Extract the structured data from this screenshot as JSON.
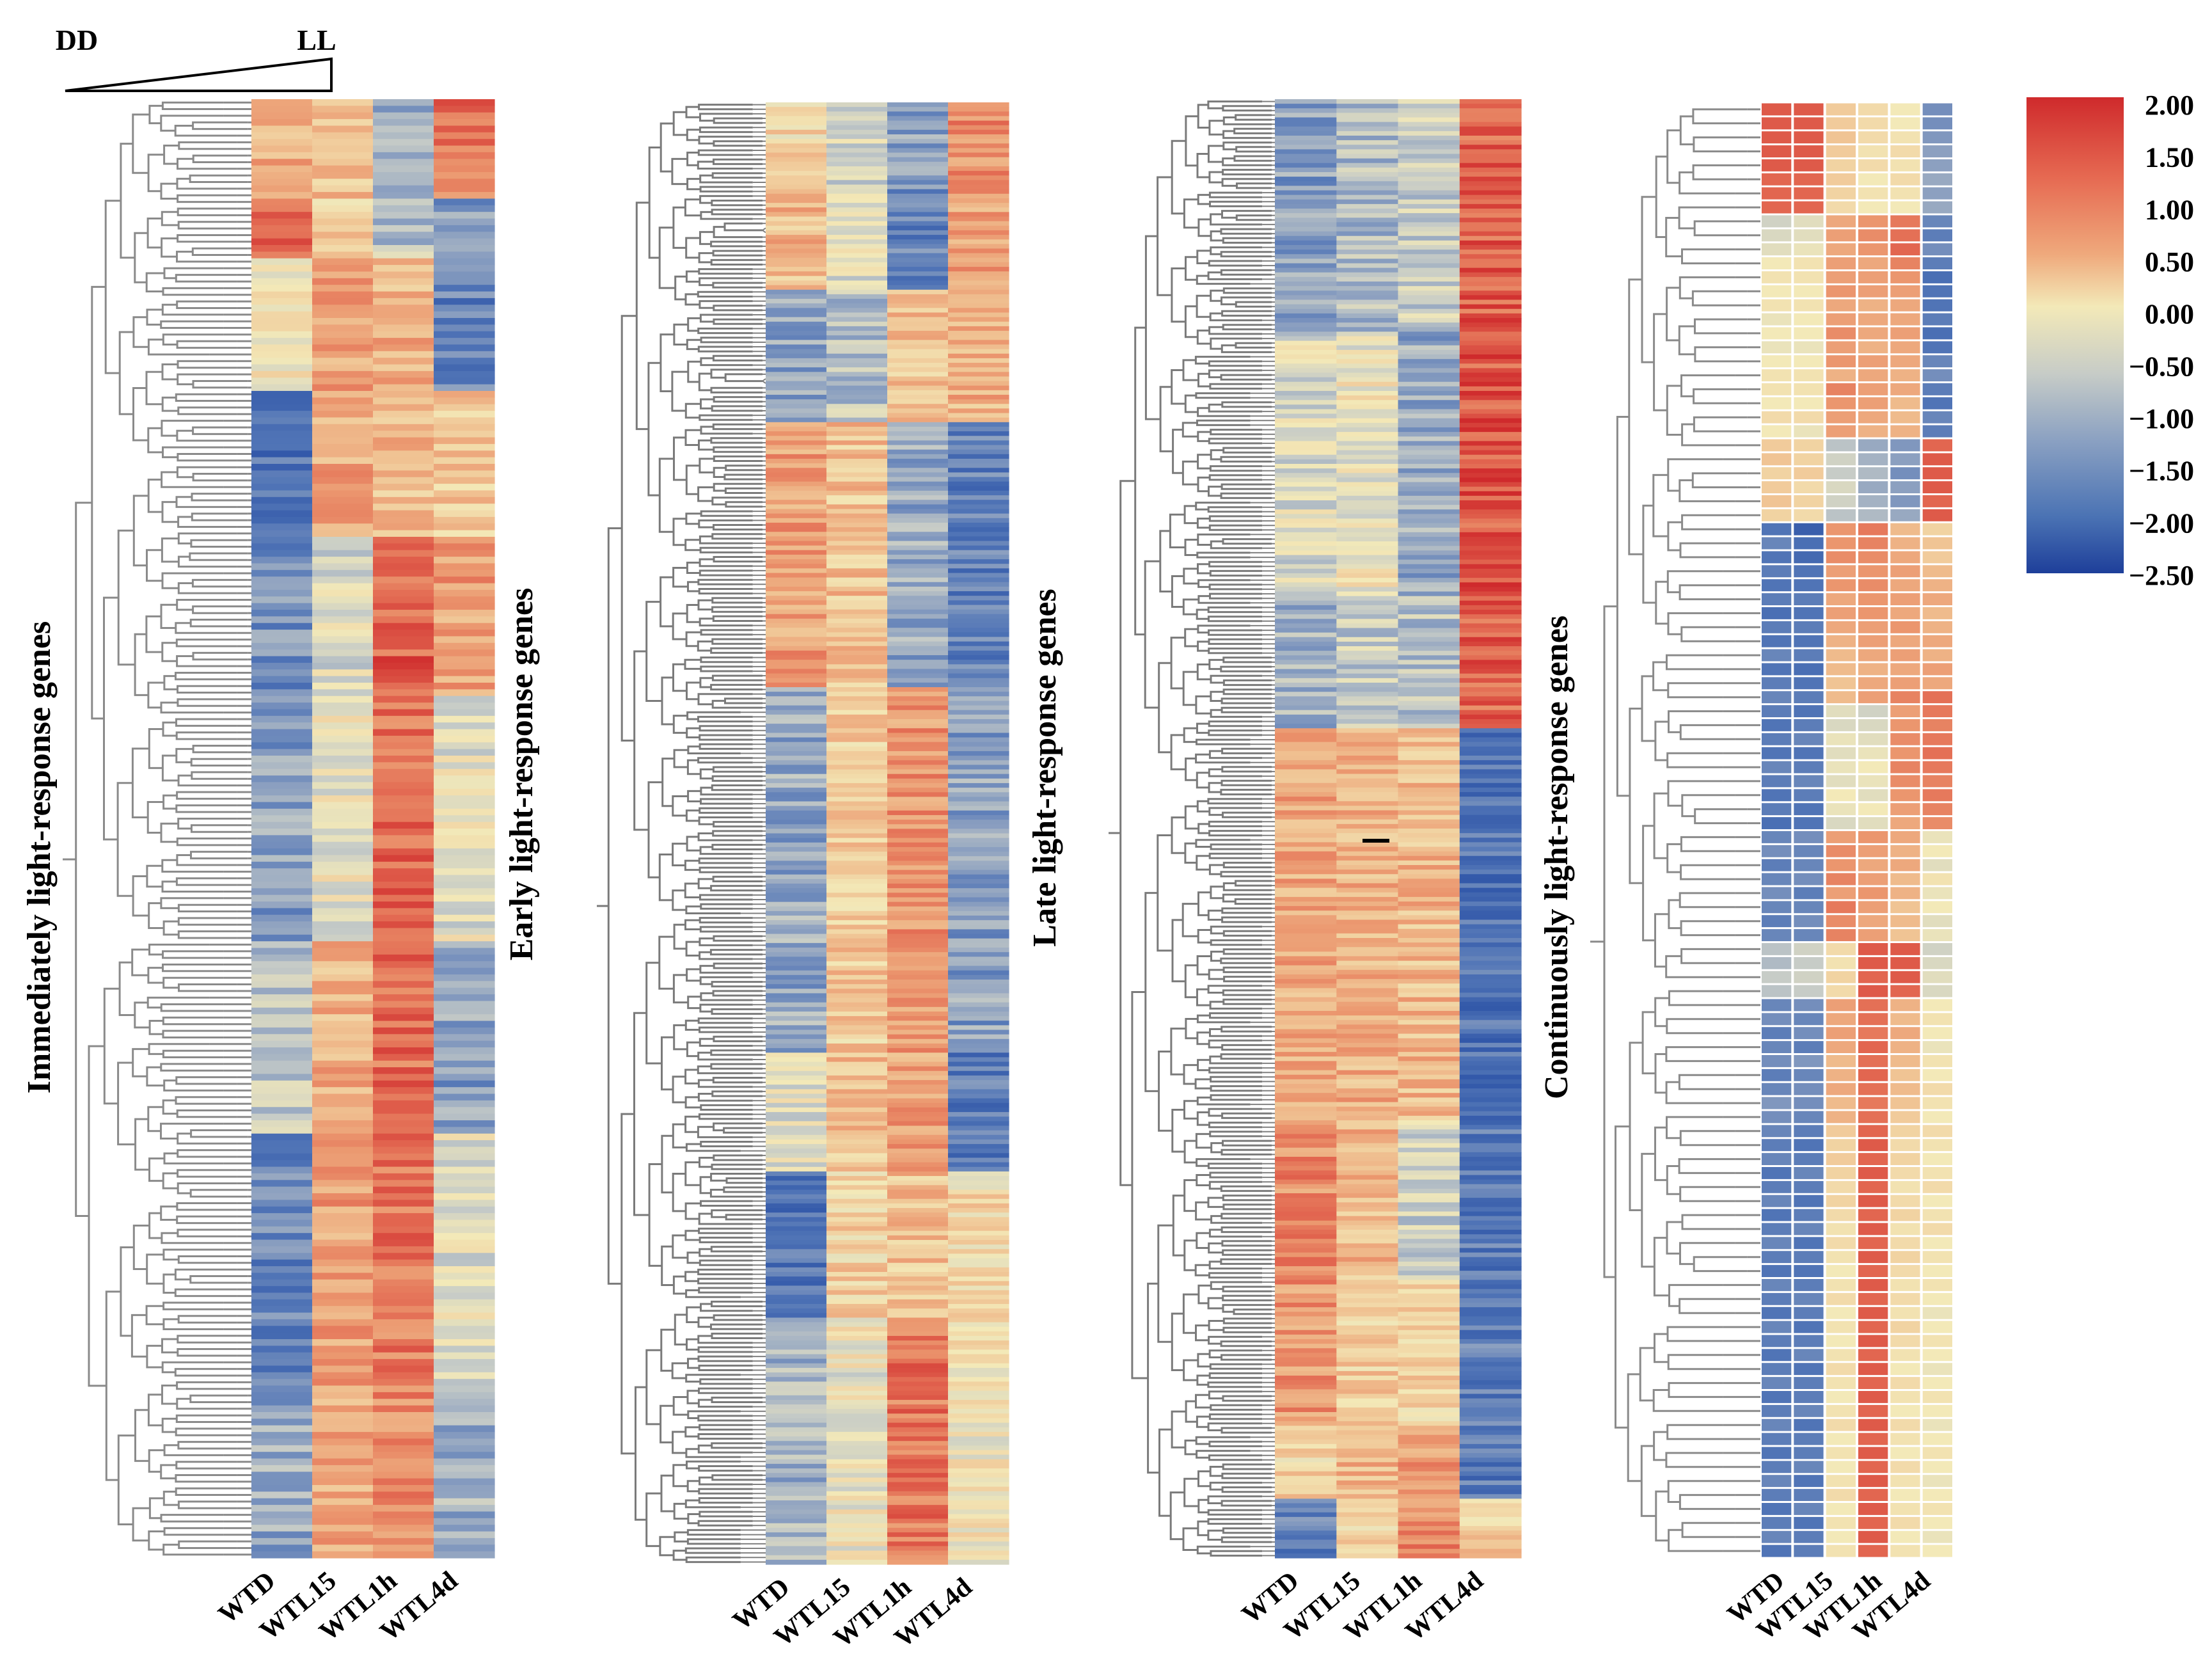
{
  "chart_data": {
    "type": "heatmap",
    "title": "",
    "xlabel": "",
    "ylabel": "",
    "samples": [
      "WTD",
      "WTL15",
      "WTL1h",
      "WTL4d"
    ],
    "gradient": {
      "left_label": "DD",
      "right_label": "LL"
    },
    "color_scale": {
      "ticks": [
        "2.00",
        "1.50",
        "1.00",
        "0.50",
        "0.00",
        "−0.50",
        "−1.00",
        "−1.50",
        "−2.00",
        "−2.50"
      ],
      "range": [
        -2.5,
        2.0
      ],
      "colors": {
        "high": "#cf2a2c",
        "mid_high": "#ef9c6e",
        "mid": "#f3e9b8",
        "mid_low": "#9fb0c6",
        "low": "#3d6aae",
        "lowest": "#1e3f9a"
      }
    },
    "panels": [
      {
        "label": "Immediately light-response genes",
        "clusters": [
          {
            "share": 0.07,
            "values": [
              0.7,
              0.5,
              -0.9,
              1.3
            ]
          },
          {
            "share": 0.04,
            "values": [
              1.4,
              0.3,
              -0.6,
              -1.0
            ]
          },
          {
            "share": 0.09,
            "values": [
              0.1,
              0.9,
              0.7,
              -1.4
            ]
          },
          {
            "share": 0.1,
            "values": [
              -1.6,
              0.8,
              0.6,
              0.4
            ]
          },
          {
            "share": 0.11,
            "values": [
              -1.2,
              -0.3,
              1.5,
              0.9
            ]
          },
          {
            "share": 0.17,
            "values": [
              -1.0,
              -0.1,
              1.4,
              -0.2
            ]
          },
          {
            "share": 0.13,
            "values": [
              -0.6,
              0.7,
              1.4,
              -1.0
            ]
          },
          {
            "share": 0.18,
            "values": [
              -1.3,
              0.9,
              1.3,
              -0.2
            ]
          },
          {
            "share": 0.11,
            "values": [
              -0.9,
              0.8,
              1.1,
              -0.8
            ]
          }
        ]
      },
      {
        "label": "Early light-response genes",
        "clusters": [
          {
            "share": 0.06,
            "values": [
              0.2,
              -0.3,
              -1.0,
              1.1
            ]
          },
          {
            "share": 0.07,
            "values": [
              0.6,
              -0.2,
              -1.4,
              0.9
            ]
          },
          {
            "share": 0.09,
            "values": [
              -1.0,
              -0.6,
              0.5,
              0.7
            ]
          },
          {
            "share": 0.18,
            "values": [
              0.9,
              0.5,
              -0.9,
              -1.4
            ]
          },
          {
            "share": 0.25,
            "values": [
              -0.9,
              0.4,
              1.0,
              -1.0
            ]
          },
          {
            "share": 0.08,
            "values": [
              -0.2,
              0.5,
              0.9,
              -1.5
            ]
          },
          {
            "share": 0.1,
            "values": [
              -1.6,
              0.3,
              0.5,
              0.2
            ]
          },
          {
            "share": 0.17,
            "values": [
              -0.8,
              -0.1,
              1.3,
              0.0
            ]
          }
        ]
      },
      {
        "label": "Late light-response genes",
        "clusters": [
          {
            "share": 0.16,
            "values": [
              -1.0,
              -0.7,
              -0.5,
              1.5
            ]
          },
          {
            "share": 0.18,
            "values": [
              -0.3,
              -0.1,
              -0.9,
              1.6
            ]
          },
          {
            "share": 0.09,
            "values": [
              -0.8,
              -0.5,
              -0.6,
              1.5
            ]
          },
          {
            "share": 0.27,
            "values": [
              0.8,
              0.7,
              0.6,
              -1.6
            ]
          },
          {
            "share": 0.11,
            "values": [
              1.1,
              0.6,
              -0.4,
              -1.5
            ]
          },
          {
            "share": 0.1,
            "values": [
              1.0,
              0.4,
              0.3,
              -1.4
            ]
          },
          {
            "share": 0.05,
            "values": [
              0.3,
              0.6,
              1.0,
              -1.5
            ]
          },
          {
            "share": 0.04,
            "values": [
              -1.4,
              0.2,
              1.1,
              0.4
            ]
          }
        ]
      },
      {
        "label": "Continuously light-response genes",
        "rows": [
          [
            1.6,
            1.6,
            0.4,
            0.2,
            0.0,
            -1.2
          ],
          [
            1.6,
            1.6,
            0.4,
            0.2,
            0.0,
            -1.2
          ],
          [
            1.6,
            1.6,
            0.5,
            0.2,
            0.1,
            -1.1
          ],
          [
            1.6,
            1.6,
            0.4,
            0.1,
            0.2,
            -1.0
          ],
          [
            1.6,
            1.6,
            0.3,
            0.2,
            0.1,
            -1.0
          ],
          [
            1.5,
            1.5,
            0.4,
            0.0,
            0.2,
            -0.9
          ],
          [
            1.5,
            1.5,
            0.3,
            0.1,
            0.1,
            -1.0
          ],
          [
            1.5,
            1.5,
            0.2,
            0.0,
            0.0,
            -0.9
          ],
          [
            -0.4,
            -0.2,
            0.8,
            1.0,
            1.3,
            -1.3
          ],
          [
            -0.3,
            -0.2,
            0.9,
            1.1,
            1.4,
            -1.4
          ],
          [
            -0.2,
            -0.1,
            0.8,
            1.0,
            1.5,
            -1.2
          ],
          [
            0.0,
            0.1,
            0.9,
            0.8,
            1.2,
            -1.4
          ],
          [
            0.1,
            0.1,
            0.9,
            0.9,
            1.0,
            -1.6
          ],
          [
            0.0,
            0.0,
            1.0,
            0.9,
            0.9,
            -1.5
          ],
          [
            0.1,
            0.1,
            0.8,
            0.7,
            0.8,
            -1.5
          ],
          [
            -0.1,
            0.0,
            0.9,
            0.8,
            0.8,
            -1.4
          ],
          [
            0.0,
            0.0,
            1.1,
            0.8,
            0.9,
            -1.6
          ],
          [
            -0.1,
            -0.1,
            0.9,
            0.7,
            0.8,
            -1.5
          ],
          [
            0.0,
            0.0,
            1.0,
            0.9,
            0.8,
            -1.3
          ],
          [
            0.1,
            0.1,
            0.7,
            0.8,
            0.7,
            -1.2
          ],
          [
            0.1,
            0.1,
            1.2,
            0.9,
            0.8,
            -1.4
          ],
          [
            0.0,
            0.0,
            1.0,
            0.9,
            0.6,
            -1.5
          ],
          [
            0.2,
            0.2,
            0.9,
            0.8,
            0.6,
            -1.3
          ],
          [
            0.0,
            -0.1,
            0.9,
            0.7,
            0.7,
            -1.4
          ],
          [
            0.4,
            0.3,
            -0.6,
            -0.9,
            -1.1,
            1.5
          ],
          [
            0.5,
            0.3,
            -0.4,
            -0.8,
            -1.0,
            1.6
          ],
          [
            0.3,
            0.4,
            -0.5,
            -0.7,
            -1.2,
            1.6
          ],
          [
            0.4,
            0.2,
            -0.3,
            -0.9,
            -1.0,
            1.6
          ],
          [
            0.5,
            0.3,
            -0.4,
            -0.8,
            -1.1,
            1.5
          ],
          [
            0.3,
            0.2,
            -0.6,
            -0.7,
            -0.9,
            1.6
          ],
          [
            -1.5,
            -1.9,
            1.0,
            1.3,
            0.6,
            0.3
          ],
          [
            -1.3,
            -1.6,
            1.0,
            1.2,
            0.7,
            0.5
          ],
          [
            -1.5,
            -1.7,
            1.1,
            1.1,
            0.8,
            0.4
          ],
          [
            -1.4,
            -1.5,
            0.9,
            1.0,
            0.9,
            0.6
          ],
          [
            -1.5,
            -1.5,
            1.0,
            1.1,
            0.8,
            0.7
          ],
          [
            -1.4,
            -1.4,
            0.8,
            1.0,
            0.9,
            0.8
          ],
          [
            -1.6,
            -1.5,
            0.9,
            1.0,
            0.8,
            0.6
          ],
          [
            -1.4,
            -1.4,
            0.8,
            0.9,
            1.0,
            0.7
          ],
          [
            -1.5,
            -1.5,
            0.7,
            0.9,
            0.8,
            0.8
          ],
          [
            -1.3,
            -1.4,
            0.6,
            0.8,
            0.9,
            0.7
          ],
          [
            -1.5,
            -1.6,
            0.6,
            0.7,
            0.8,
            0.9
          ],
          [
            -1.4,
            -1.5,
            0.5,
            0.8,
            0.9,
            0.8
          ],
          [
            -1.3,
            -1.4,
            0.6,
            0.9,
            1.2,
            1.4
          ],
          [
            -1.4,
            -1.5,
            -0.2,
            -0.4,
            0.9,
            1.3
          ],
          [
            -1.5,
            -1.4,
            -0.3,
            -0.3,
            1.0,
            1.2
          ],
          [
            -1.4,
            -1.3,
            -0.1,
            -0.2,
            1.1,
            1.3
          ],
          [
            -1.5,
            -1.5,
            -0.2,
            -0.1,
            1.0,
            1.4
          ],
          [
            -1.3,
            -1.4,
            -0.1,
            0.0,
            1.2,
            1.3
          ],
          [
            -1.4,
            -1.3,
            -0.2,
            -0.1,
            1.1,
            1.2
          ],
          [
            -1.5,
            -1.4,
            0.0,
            -0.2,
            1.0,
            1.3
          ],
          [
            -1.4,
            -1.5,
            -0.1,
            0.0,
            0.9,
            1.2
          ],
          [
            -1.6,
            -1.5,
            -0.3,
            -0.2,
            0.8,
            1.1
          ],
          [
            -1.3,
            -1.2,
            0.9,
            1.0,
            0.8,
            -0.1
          ],
          [
            -1.2,
            -1.3,
            1.1,
            0.9,
            0.7,
            0.0
          ],
          [
            -1.4,
            -1.3,
            1.0,
            0.8,
            0.8,
            -0.2
          ],
          [
            -1.3,
            -1.2,
            1.2,
            0.9,
            0.6,
            0.1
          ],
          [
            -1.2,
            -1.4,
            0.9,
            1.0,
            0.7,
            -0.1
          ],
          [
            -1.3,
            -1.3,
            1.3,
            0.9,
            0.5,
            0.0
          ],
          [
            -1.4,
            -1.2,
            1.1,
            0.8,
            0.6,
            -0.2
          ],
          [
            -1.3,
            -1.3,
            1.2,
            0.9,
            0.5,
            -0.1
          ],
          [
            -0.6,
            -0.4,
            0.2,
            1.6,
            1.6,
            -0.4
          ],
          [
            -0.7,
            -0.5,
            0.1,
            1.6,
            1.6,
            -0.3
          ],
          [
            -0.5,
            -0.4,
            0.3,
            1.5,
            1.6,
            -0.2
          ],
          [
            -0.6,
            -0.5,
            0.2,
            1.6,
            1.5,
            -0.3
          ],
          [
            -1.3,
            -1.2,
            0.9,
            1.4,
            0.7,
            0.0
          ],
          [
            -1.2,
            -1.3,
            0.8,
            1.4,
            0.6,
            0.1
          ],
          [
            -1.4,
            -1.2,
            0.9,
            1.3,
            0.8,
            0.0
          ],
          [
            -1.3,
            -1.4,
            0.8,
            1.5,
            0.7,
            -0.1
          ],
          [
            -1.2,
            -1.1,
            0.6,
            1.4,
            0.6,
            0.1
          ],
          [
            -1.4,
            -1.3,
            0.7,
            1.5,
            0.5,
            0.0
          ],
          [
            -1.3,
            -1.2,
            0.8,
            1.4,
            0.6,
            0.2
          ],
          [
            -1.1,
            -1.2,
            0.6,
            1.3,
            0.5,
            0.1
          ],
          [
            -1.2,
            -1.3,
            0.7,
            1.4,
            0.4,
            0.0
          ],
          [
            -1.3,
            -1.4,
            0.4,
            1.5,
            0.3,
            0.2
          ],
          [
            -1.4,
            -1.5,
            0.3,
            1.6,
            0.2,
            0.1
          ],
          [
            -1.3,
            -1.4,
            0.4,
            1.5,
            0.3,
            0.0
          ],
          [
            -1.5,
            -1.3,
            0.3,
            1.6,
            0.2,
            0.1
          ],
          [
            -1.4,
            -1.4,
            0.2,
            1.5,
            0.1,
            0.2
          ],
          [
            -1.3,
            -1.5,
            0.3,
            1.6,
            0.2,
            0.0
          ],
          [
            -1.5,
            -1.4,
            0.2,
            1.5,
            0.3,
            0.1
          ],
          [
            -1.4,
            -1.3,
            0.1,
            1.6,
            0.1,
            0.2
          ],
          [
            -1.3,
            -1.5,
            0.2,
            1.5,
            0.2,
            0.0
          ],
          [
            -1.4,
            -1.4,
            0.1,
            1.6,
            0.3,
            0.1
          ],
          [
            -1.5,
            -1.5,
            0.0,
            1.5,
            0.2,
            0.0
          ],
          [
            -1.3,
            -1.4,
            0.1,
            1.6,
            0.1,
            0.1
          ],
          [
            -1.4,
            -1.3,
            0.2,
            1.5,
            0.2,
            0.0
          ],
          [
            -1.5,
            -1.4,
            0.0,
            1.6,
            0.1,
            -0.1
          ],
          [
            -1.3,
            -1.5,
            0.1,
            1.5,
            0.3,
            0.0
          ],
          [
            -1.4,
            -1.4,
            0.0,
            1.6,
            0.2,
            0.1
          ],
          [
            -1.5,
            -1.3,
            0.1,
            1.5,
            0.1,
            0.0
          ],
          [
            -1.4,
            -1.5,
            0.2,
            1.6,
            0.0,
            -0.1
          ],
          [
            -1.3,
            -1.4,
            0.1,
            1.5,
            0.2,
            0.0
          ],
          [
            -1.5,
            -1.4,
            0.0,
            1.6,
            0.1,
            0.1
          ],
          [
            -1.4,
            -1.3,
            0.1,
            1.5,
            0.0,
            0.0
          ],
          [
            -1.3,
            -1.5,
            0.2,
            1.6,
            0.2,
            -0.1
          ],
          [
            -1.4,
            -1.4,
            0.0,
            1.5,
            0.1,
            0.0
          ],
          [
            -1.5,
            -1.4,
            0.1,
            1.6,
            0.0,
            0.1
          ],
          [
            -1.4,
            -1.3,
            0.0,
            1.5,
            0.2,
            0.0
          ],
          [
            -1.3,
            -1.5,
            0.1,
            1.6,
            0.1,
            -0.1
          ],
          [
            -1.4,
            -1.4,
            0.2,
            1.5,
            0.0,
            0.0
          ],
          [
            -1.5,
            -1.3,
            0.0,
            1.6,
            0.1,
            0.1
          ],
          [
            -1.4,
            -1.5,
            0.1,
            1.5,
            0.2,
            0.0
          ],
          [
            -1.3,
            -1.4,
            0.0,
            1.6,
            0.0,
            -0.1
          ],
          [
            -1.5,
            -1.4,
            0.1,
            1.5,
            0.1,
            0.0
          ]
        ]
      }
    ]
  }
}
